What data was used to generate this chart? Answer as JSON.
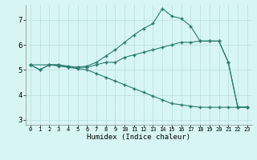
{
  "xlabel": "Humidex (Indice chaleur)",
  "bg_color": "#d8f5f5",
  "line_color": "#2a7a6e",
  "grid_color": "#b8dede",
  "grid_minor_color": "#cce8e8",
  "xlim": [
    -0.5,
    23.5
  ],
  "ylim": [
    2.8,
    7.6
  ],
  "yticks": [
    3,
    4,
    5,
    6,
    7
  ],
  "xticks": [
    0,
    1,
    2,
    3,
    4,
    5,
    6,
    7,
    8,
    9,
    10,
    11,
    12,
    13,
    14,
    15,
    16,
    17,
    18,
    19,
    20,
    21,
    22,
    23
  ],
  "line1_x": [
    0,
    1,
    2,
    3,
    4,
    5,
    6,
    7,
    8,
    9,
    10,
    11,
    12,
    13,
    14,
    15,
    16,
    17,
    18,
    19,
    20,
    21,
    22,
    23
  ],
  "line1_y": [
    5.2,
    5.0,
    5.2,
    5.2,
    5.1,
    5.1,
    5.1,
    5.2,
    5.3,
    5.3,
    5.5,
    5.6,
    5.7,
    5.8,
    5.9,
    6.0,
    6.1,
    6.1,
    6.15,
    6.15,
    6.15,
    5.3,
    3.5,
    3.5
  ],
  "line2_x": [
    0,
    1,
    2,
    3,
    4,
    5,
    6,
    7,
    8,
    9,
    10,
    11,
    12,
    13,
    14,
    15,
    16,
    17,
    18,
    19,
    20,
    21,
    22,
    23
  ],
  "line2_y": [
    5.2,
    5.0,
    5.2,
    5.15,
    5.1,
    5.05,
    5.0,
    4.85,
    4.7,
    4.55,
    4.4,
    4.25,
    4.1,
    3.95,
    3.8,
    3.65,
    3.6,
    3.55,
    3.5,
    3.5,
    3.5,
    3.5,
    3.5,
    3.5
  ],
  "line3_x": [
    0,
    2,
    3,
    4,
    5,
    6,
    7,
    8,
    9,
    10,
    11,
    12,
    13,
    14,
    15,
    16,
    17,
    18,
    19,
    20,
    21,
    22,
    23
  ],
  "line3_y": [
    5.2,
    5.2,
    5.2,
    5.15,
    5.1,
    5.15,
    5.3,
    5.55,
    5.8,
    6.1,
    6.4,
    6.65,
    6.85,
    7.45,
    7.15,
    7.05,
    6.75,
    6.15,
    6.15,
    6.15,
    5.3,
    3.5,
    3.5
  ]
}
